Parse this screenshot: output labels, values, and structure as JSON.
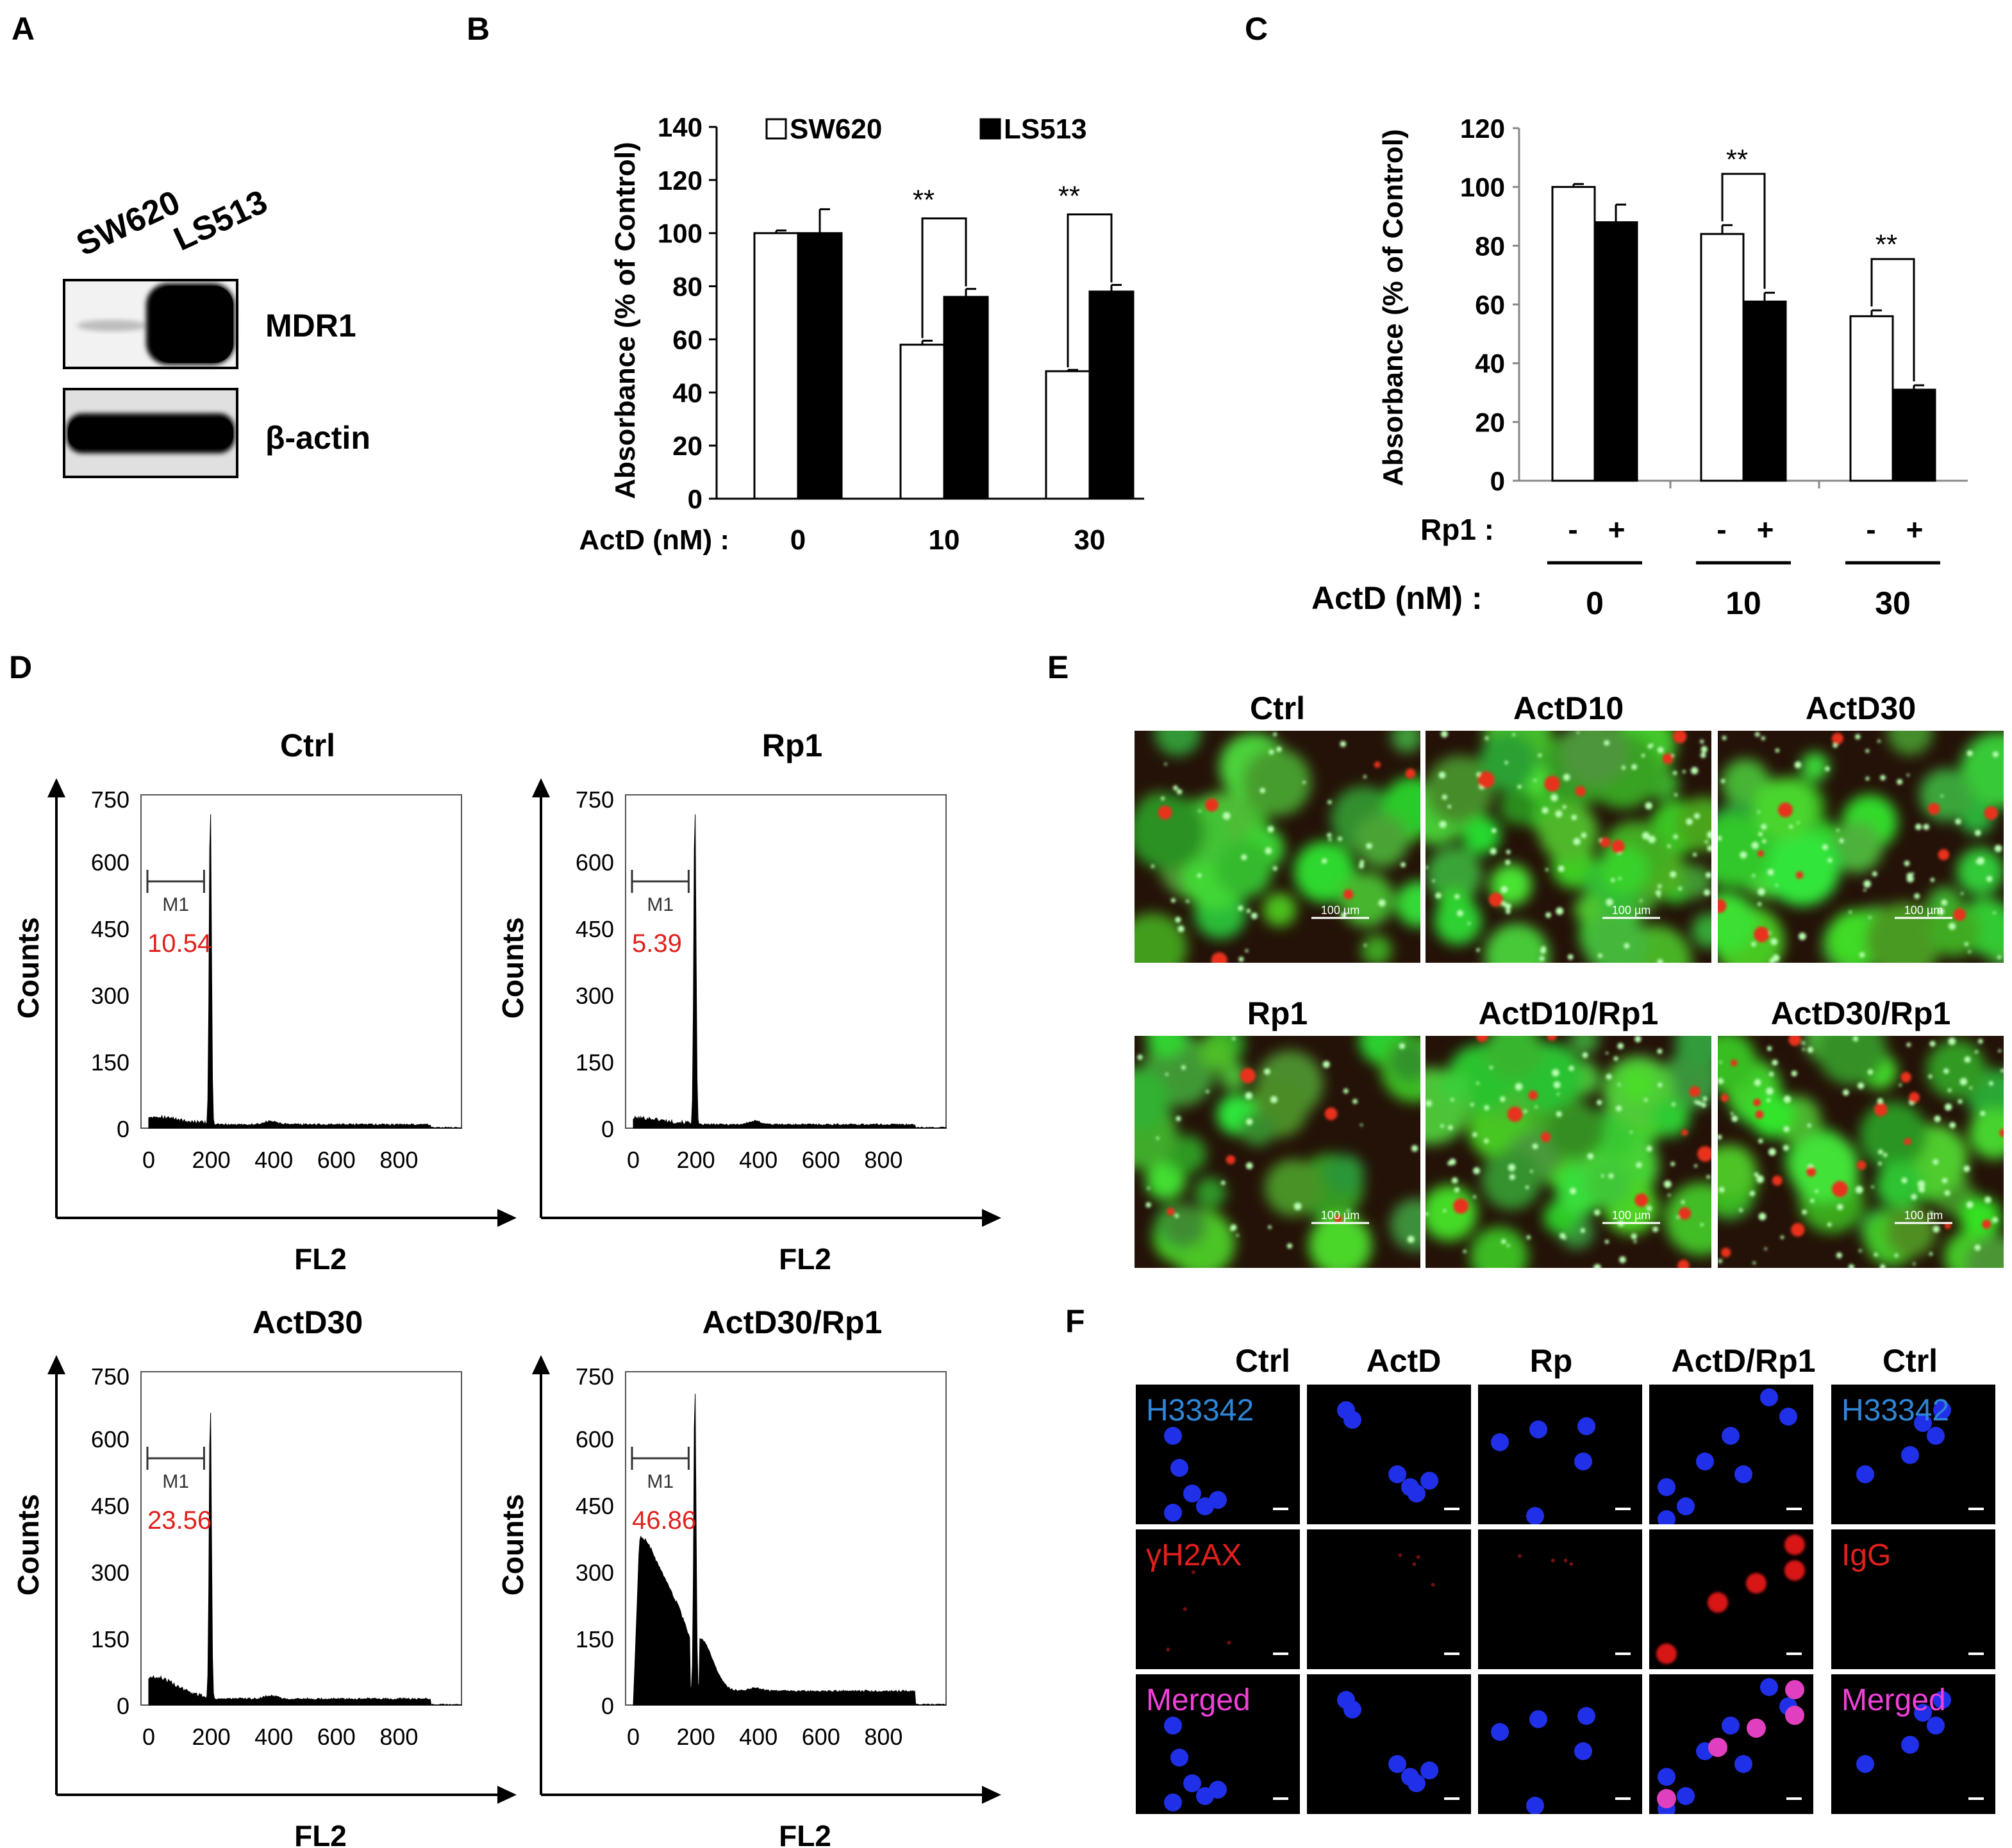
{
  "panels": {
    "A": {
      "letter": "A",
      "cells": [
        "SW620",
        "LS513"
      ],
      "bands": [
        "MDR1",
        "β-actin"
      ]
    },
    "B": {
      "letter": "B",
      "xprefix": "ActD (nM) :",
      "sig": "**"
    },
    "C": {
      "letter": "C",
      "rp_label": "Rp1 :",
      "minus": "-",
      "plus": "+",
      "xprefix": "ActD (nM) :",
      "sig": "**"
    },
    "D": {
      "letter": "D",
      "marker": "M1",
      "titles": [
        "Ctrl",
        "Rp1",
        "ActD30",
        "ActD30/Rp1"
      ],
      "m1_values": [
        "10.54",
        "5.39",
        "23.56",
        "46.86"
      ],
      "xlabel": "FL2",
      "ylabel": "Counts",
      "yticks": [
        "0",
        "150",
        "300",
        "450",
        "600",
        "750"
      ],
      "xticks": [
        "0",
        "200",
        "400",
        "600",
        "800"
      ]
    },
    "E": {
      "letter": "E",
      "titles": [
        "Ctrl",
        "ActD10",
        "ActD30",
        "Rp1",
        "ActD10/Rp1",
        "ActD30/Rp1"
      ],
      "scale": "100 µm"
    },
    "F": {
      "letter": "F",
      "columns": [
        "Ctrl",
        "ActD",
        "Rp",
        "ActD/Rp1",
        "Ctrl"
      ],
      "stains": {
        "h33342": "H33342",
        "gh2ax": "γH2AX",
        "igg": "IgG",
        "merged": "Merged"
      }
    }
  },
  "colors": {
    "red_text": "#e0201c",
    "blue_text": "#2e86d8",
    "magenta_text": "#f040d8",
    "cell_green": "#3ec83a",
    "nucleus_blue": "#2030e8"
  },
  "chart_data": [
    {
      "type": "bar",
      "panel": "B",
      "categories": [
        "0",
        "10",
        "30"
      ],
      "series": [
        {
          "name": "SW620",
          "values": [
            100,
            58,
            48
          ],
          "errors": [
            1,
            1.5,
            0.5
          ],
          "fill": "#ffffff"
        },
        {
          "name": "LS513",
          "values": [
            100,
            76,
            78
          ],
          "errors": [
            9,
            3,
            2.5
          ],
          "fill": "#000000"
        }
      ],
      "xlabel": "ActD (nM)",
      "ylabel": "Absorbance (% of Control)",
      "ylim": [
        0,
        140
      ],
      "yticks": [
        0,
        20,
        40,
        60,
        80,
        100,
        120,
        140
      ],
      "significance": [
        "",
        "**",
        "**"
      ],
      "legend": "top"
    },
    {
      "type": "bar",
      "panel": "C",
      "categories": [
        "0",
        "10",
        "30"
      ],
      "series": [
        {
          "name": "-",
          "values": [
            100,
            84,
            56
          ],
          "errors": [
            1,
            3,
            2
          ],
          "fill": "#ffffff"
        },
        {
          "name": "+",
          "values": [
            88,
            61,
            31
          ],
          "errors": [
            6,
            3,
            1.5
          ],
          "fill": "#000000"
        }
      ],
      "xlabel": "ActD (nM)",
      "ylabel": "Absorbance (% of Control)",
      "ylim": [
        0,
        120
      ],
      "yticks": [
        0,
        20,
        40,
        60,
        80,
        100,
        120
      ],
      "significance": [
        "",
        "**",
        "**"
      ]
    }
  ]
}
